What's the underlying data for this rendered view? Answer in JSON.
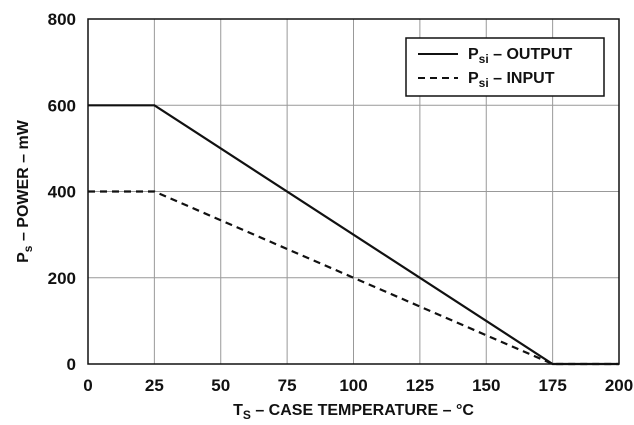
{
  "chart_data": {
    "type": "line",
    "xlabel": {
      "main": "T",
      "sub": "S",
      "rest": " – CASE TEMPERATURE – °C"
    },
    "ylabel": {
      "main": "P",
      "sub": "s",
      "rest": " – POWER – mW"
    },
    "xlim": [
      0,
      200
    ],
    "ylim": [
      0,
      800
    ],
    "xticks": [
      "0",
      "25",
      "50",
      "75",
      "100",
      "125",
      "150",
      "175",
      "200"
    ],
    "yticks": [
      "0",
      "200",
      "400",
      "600",
      "800"
    ],
    "grid": true,
    "legend_position": "top-right",
    "series": [
      {
        "name": {
          "main": "P",
          "sub": "si",
          "rest": " – OUTPUT"
        },
        "style": "solid",
        "color": "#111111",
        "x": [
          0,
          25,
          175,
          200
        ],
        "y": [
          600,
          600,
          0,
          0
        ]
      },
      {
        "name": {
          "main": "P",
          "sub": "si",
          "rest": " – INPUT"
        },
        "style": "dashed",
        "color": "#111111",
        "x": [
          0,
          25,
          175,
          200
        ],
        "y": [
          400,
          400,
          0,
          0
        ]
      }
    ]
  }
}
